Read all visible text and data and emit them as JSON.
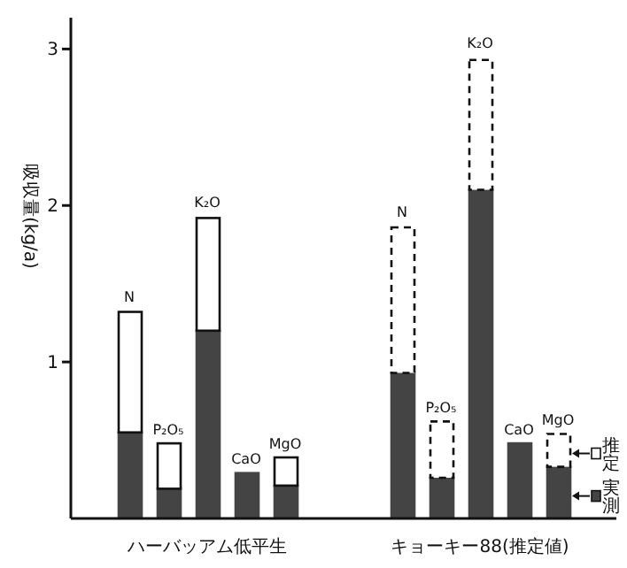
{
  "chart_data": {
    "type": "bar",
    "stacked": true,
    "ylabel": "吸収量(kg/a)",
    "categories": [
      null,
      null,
      null,
      null,
      null,
      null,
      null,
      null,
      null,
      null,
      null,
      null,
      null,
      null
    ],
    "series": [
      {
        "name": "実測",
        "color": "#444444",
        "values": [
          null,
          0.55,
          0.19,
          1.2,
          0.29,
          0.21,
          null,
          null,
          0.93,
          0.26,
          2.1,
          0.48,
          0.33,
          null
        ]
      },
      {
        "color": "#ffffff",
        "values": [
          null,
          0.77,
          0.29,
          0.72,
          null,
          0.18,
          null,
          null,
          null,
          null,
          null,
          null,
          null,
          null
        ]
      },
      {
        "name": "推定",
        "color": "#ffffff",
        "line_style": "dashed",
        "values": [
          null,
          null,
          null,
          null,
          null,
          null,
          null,
          null,
          0.93,
          0.36,
          0.83,
          null,
          0.21,
          null
        ]
      }
    ],
    "ylim": [
      0,
      3.2
    ],
    "yticks": [
      1,
      2,
      3
    ],
    "grid": false,
    "legend": "bottom right",
    "annotations": [
      {
        "text": "N",
        "y": 1.32
      },
      {
        "text": "P₂O₅",
        "y": 0.48
      },
      {
        "text": "K₂O",
        "y": 1.92
      },
      {
        "text": "CaO",
        "y": 0.29
      },
      {
        "text": "MgO",
        "y": 0.39
      },
      {
        "text": "N",
        "y": 1.86
      },
      {
        "text": "P₂O₅",
        "y": 0.62
      },
      {
        "text": "K₂O",
        "y": 2.93
      },
      {
        "text": "CaO",
        "y": 0.48
      },
      {
        "text": "MgO",
        "y": 0.54
      },
      "ハーバッアム低平生",
      "キョーキー88(推定値)"
    ]
  }
}
